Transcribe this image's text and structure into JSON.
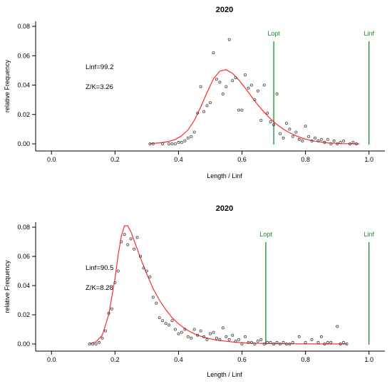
{
  "colors": {
    "curve": "#ff2a2a",
    "reference_line": "#1a8a2a",
    "points": "#444444",
    "axis": "#000000"
  },
  "chart_data": [
    {
      "type": "scatter",
      "title": "2020",
      "xlabel": "Length / Linf",
      "ylabel": "relative Frequency",
      "xlim": [
        0,
        1
      ],
      "ylim": [
        0,
        0.08
      ],
      "x_ticks": [
        "0.0",
        "0.2",
        "0.4",
        "0.6",
        "0.8",
        "1.0"
      ],
      "y_ticks": [
        "0.00",
        "0.02",
        "0.04",
        "0.06",
        "0.08"
      ],
      "grid": false,
      "annotations": [
        "Linf=99.2",
        "Z/K=3.26"
      ],
      "reference_lines": [
        {
          "label": "Lopt",
          "x": 0.7,
          "y_top": 0.076
        },
        {
          "label": "Linf",
          "x": 1.0,
          "y_top": 0.076
        }
      ],
      "curve": {
        "x": [
          0.31,
          0.33,
          0.35,
          0.37,
          0.39,
          0.41,
          0.43,
          0.45,
          0.47,
          0.49,
          0.51,
          0.53,
          0.55,
          0.57,
          0.59,
          0.61,
          0.63,
          0.65,
          0.67,
          0.69,
          0.71,
          0.73,
          0.75,
          0.77,
          0.79,
          0.81,
          0.83,
          0.85,
          0.87,
          0.89,
          0.91,
          0.93,
          0.95,
          0.97
        ],
        "y": [
          0.0002,
          0.0005,
          0.0009,
          0.0017,
          0.003,
          0.0055,
          0.0095,
          0.016,
          0.025,
          0.035,
          0.0443,
          0.0495,
          0.0505,
          0.048,
          0.0435,
          0.038,
          0.0322,
          0.0265,
          0.0215,
          0.017,
          0.0132,
          0.01,
          0.0075,
          0.0055,
          0.0039,
          0.0027,
          0.0018,
          0.0012,
          0.0007,
          0.0004,
          0.0002,
          0.0001,
          5e-05,
          2e-05
        ]
      },
      "points": {
        "x": [
          0.31,
          0.32,
          0.35,
          0.37,
          0.38,
          0.39,
          0.4,
          0.41,
          0.42,
          0.43,
          0.44,
          0.45,
          0.46,
          0.47,
          0.48,
          0.49,
          0.5,
          0.51,
          0.52,
          0.53,
          0.54,
          0.55,
          0.56,
          0.57,
          0.58,
          0.59,
          0.6,
          0.61,
          0.62,
          0.63,
          0.64,
          0.65,
          0.66,
          0.67,
          0.68,
          0.69,
          0.7,
          0.71,
          0.72,
          0.73,
          0.74,
          0.75,
          0.76,
          0.77,
          0.78,
          0.79,
          0.8,
          0.81,
          0.82,
          0.83,
          0.84,
          0.85,
          0.86,
          0.87,
          0.88,
          0.89,
          0.9,
          0.91,
          0.92,
          0.94,
          0.95,
          0.96
        ],
        "y": [
          0.0,
          0.0,
          0.0,
          0.0,
          0.0,
          0.0,
          0.001,
          0.001,
          0.002,
          0.004,
          0.005,
          0.008,
          0.021,
          0.039,
          0.022,
          0.026,
          0.028,
          0.062,
          0.044,
          0.042,
          0.034,
          0.039,
          0.071,
          0.043,
          0.045,
          0.023,
          0.023,
          0.047,
          0.038,
          0.04,
          0.03,
          0.036,
          0.016,
          0.04,
          0.021,
          0.015,
          0.013,
          0.034,
          0.007,
          0.004,
          0.014,
          0.01,
          0.005,
          0.008,
          0.003,
          0.002,
          0.012,
          0.005,
          0.002,
          0.004,
          0.002,
          0.003,
          0.001,
          0.003,
          0.0,
          0.002,
          0.0,
          0.001,
          0.002,
          0.0,
          0.001,
          0.0
        ]
      }
    },
    {
      "type": "scatter",
      "title": "2020",
      "xlabel": "Length / Linf",
      "ylabel": "relative Frequency",
      "xlim": [
        0,
        1
      ],
      "ylim": [
        0,
        0.08
      ],
      "x_ticks": [
        "0.0",
        "0.2",
        "0.4",
        "0.6",
        "0.8",
        "1.0"
      ],
      "y_ticks": [
        "0.00",
        "0.02",
        "0.04",
        "0.06",
        "0.08"
      ],
      "grid": false,
      "annotations": [
        "Linf=90.5",
        "Z/K=8.28"
      ],
      "reference_lines": [
        {
          "label": "Lopt",
          "x": 0.675,
          "y_top": 0.076
        },
        {
          "label": "Linf",
          "x": 1.0,
          "y_top": 0.076
        }
      ],
      "curve": {
        "x": [
          0.12,
          0.14,
          0.16,
          0.18,
          0.2,
          0.21,
          0.22,
          0.23,
          0.24,
          0.25,
          0.26,
          0.28,
          0.3,
          0.32,
          0.34,
          0.36,
          0.38,
          0.4,
          0.42,
          0.44,
          0.46,
          0.48,
          0.5,
          0.52,
          0.54,
          0.56,
          0.58,
          0.6,
          0.62,
          0.64,
          0.66,
          0.68,
          0.7,
          0.72,
          0.74,
          0.76,
          0.78,
          0.8,
          0.82,
          0.84,
          0.86,
          0.88,
          0.9,
          0.93
        ],
        "y": [
          0.0003,
          0.0015,
          0.006,
          0.02,
          0.045,
          0.061,
          0.074,
          0.081,
          0.081,
          0.077,
          0.071,
          0.059,
          0.048,
          0.038,
          0.03,
          0.0235,
          0.018,
          0.0138,
          0.0105,
          0.008,
          0.006,
          0.0046,
          0.0035,
          0.0027,
          0.0021,
          0.0016,
          0.0012,
          0.0009,
          0.0007,
          0.0005,
          0.0004,
          0.0003,
          0.0002,
          0.00015,
          0.0001,
          8e-05,
          6e-05,
          4e-05,
          3e-05,
          2e-05,
          1e-05,
          1e-05,
          0.0,
          0.0
        ]
      },
      "points": {
        "x": [
          0.12,
          0.13,
          0.14,
          0.15,
          0.16,
          0.17,
          0.18,
          0.19,
          0.2,
          0.21,
          0.22,
          0.23,
          0.24,
          0.25,
          0.26,
          0.27,
          0.28,
          0.29,
          0.3,
          0.31,
          0.32,
          0.33,
          0.34,
          0.35,
          0.36,
          0.37,
          0.38,
          0.39,
          0.4,
          0.41,
          0.42,
          0.43,
          0.44,
          0.45,
          0.46,
          0.47,
          0.48,
          0.49,
          0.5,
          0.51,
          0.52,
          0.53,
          0.54,
          0.55,
          0.56,
          0.57,
          0.58,
          0.59,
          0.6,
          0.61,
          0.62,
          0.63,
          0.64,
          0.65,
          0.66,
          0.67,
          0.68,
          0.69,
          0.7,
          0.71,
          0.72,
          0.73,
          0.74,
          0.75,
          0.76,
          0.78,
          0.8,
          0.82,
          0.84,
          0.85,
          0.86,
          0.87,
          0.88,
          0.9,
          0.91,
          0.92,
          0.93
        ],
        "y": [
          0.0,
          0.0,
          0.0,
          0.001,
          0.004,
          0.009,
          0.021,
          0.024,
          0.042,
          0.05,
          0.07,
          0.075,
          0.068,
          0.072,
          0.065,
          0.073,
          0.06,
          0.052,
          0.05,
          0.046,
          0.032,
          0.028,
          0.018,
          0.016,
          0.014,
          0.013,
          0.016,
          0.01,
          0.007,
          0.008,
          0.01,
          0.005,
          0.004,
          0.01,
          0.006,
          0.009,
          0.005,
          0.003,
          0.007,
          0.008,
          0.004,
          0.003,
          0.011,
          0.005,
          0.003,
          0.006,
          0.002,
          0.003,
          0.0,
          0.005,
          0.001,
          0.001,
          0.0,
          0.002,
          0.003,
          0.0,
          0.001,
          0.001,
          0.0,
          0.001,
          0.0,
          0.001,
          0.0,
          0.0,
          0.001,
          0.005,
          0.001,
          0.003,
          0.001,
          0.005,
          0.0,
          0.001,
          0.001,
          0.012,
          0.0,
          0.001,
          0.0
        ]
      }
    }
  ]
}
